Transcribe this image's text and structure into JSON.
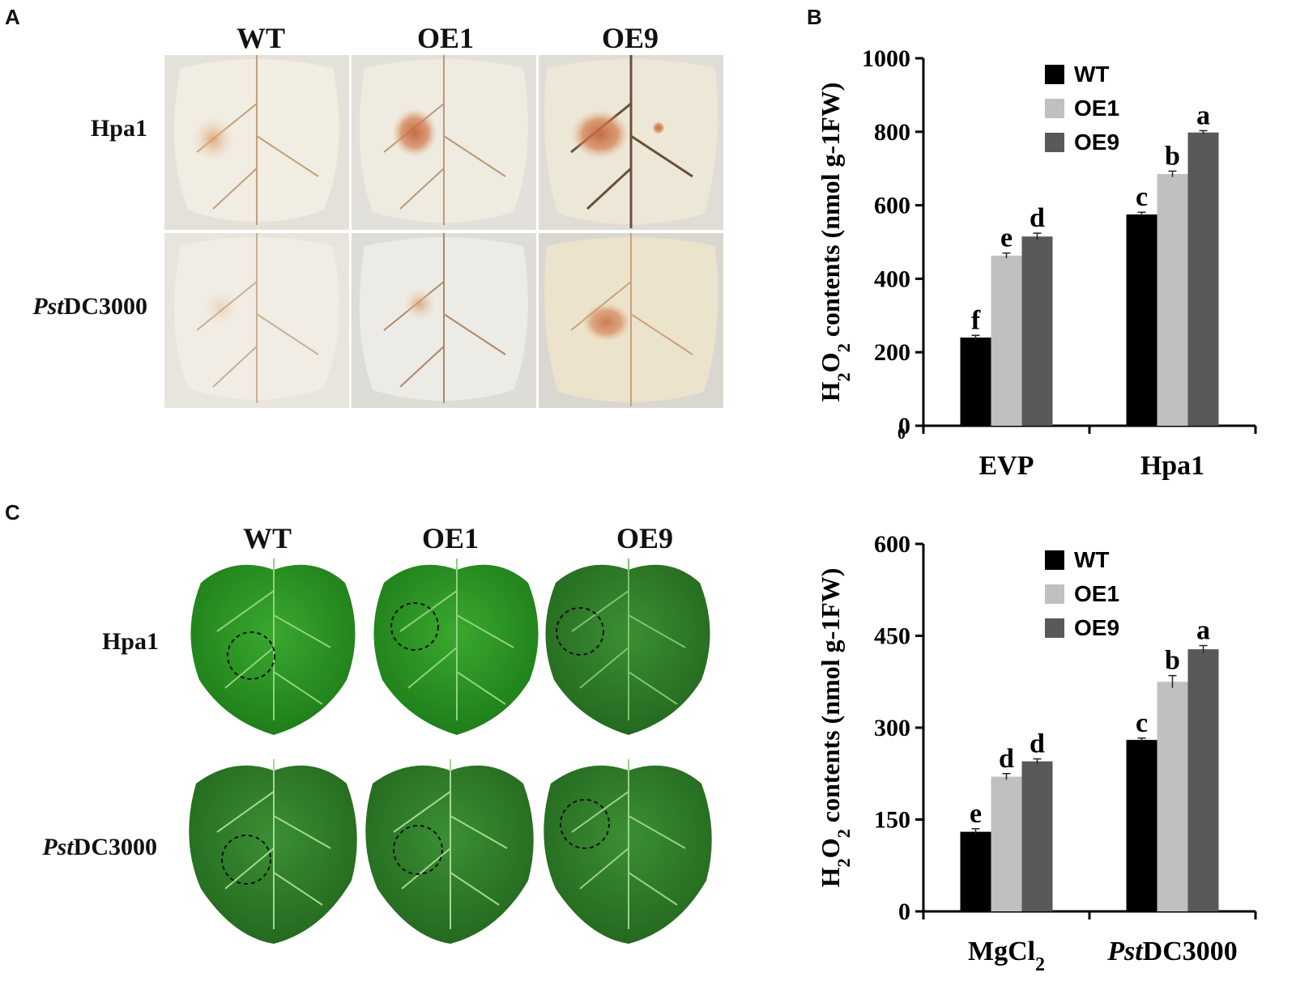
{
  "panels": {
    "a": {
      "letter": "A",
      "columns": [
        "WT",
        "OE1",
        "OE9"
      ],
      "rows": [
        "Hpa1",
        "DC3000"
      ],
      "row_italic_prefix": [
        "",
        "Pst"
      ]
    },
    "b": {
      "letter": "B"
    },
    "c": {
      "letter": "C",
      "columns": [
        "WT",
        "OE1",
        "OE9"
      ],
      "rows": [
        "Hpa1",
        "DC3000"
      ],
      "row_italic_prefix": [
        "",
        "Pst"
      ]
    }
  },
  "colors": {
    "WT": "#000000",
    "OE1": "#c0c0c0",
    "OE9": "#595959"
  },
  "chart_data": [
    {
      "type": "bar",
      "ylabel": "H2O2 contents (nmol g-1FW)",
      "ylim": [
        0,
        1000
      ],
      "yticks": [
        "0",
        "200",
        "400",
        "600",
        "800",
        "1000"
      ],
      "extra_tick_label": "0",
      "categories": [
        "EVP",
        "Hpa1"
      ],
      "category_italic_prefix": [
        "",
        ""
      ],
      "series": [
        {
          "name": "WT",
          "values": [
            240,
            575
          ],
          "errors": [
            6,
            6
          ],
          "letters": [
            "f",
            "c"
          ]
        },
        {
          "name": "OE1",
          "values": [
            463,
            685
          ],
          "errors": [
            7,
            8
          ],
          "letters": [
            "e",
            "b"
          ]
        },
        {
          "name": "OE9",
          "values": [
            515,
            798
          ],
          "errors": [
            9,
            5
          ],
          "letters": [
            "d",
            "a"
          ]
        }
      ],
      "legend": "top-center"
    },
    {
      "type": "bar",
      "ylabel": "H2O2 contents (nmol g-1FW)",
      "ylim": [
        0,
        600
      ],
      "yticks": [
        "0",
        "150",
        "300",
        "450",
        "600"
      ],
      "categories": [
        "MgCl2",
        "DC3000"
      ],
      "category_italic_prefix": [
        "",
        "Pst"
      ],
      "series": [
        {
          "name": "WT",
          "values": [
            130,
            280
          ],
          "errors": [
            5,
            3
          ],
          "letters": [
            "e",
            "c"
          ]
        },
        {
          "name": "OE1",
          "values": [
            220,
            375
          ],
          "errors": [
            5,
            10
          ],
          "letters": [
            "d",
            "b"
          ]
        },
        {
          "name": "OE9",
          "values": [
            245,
            428
          ],
          "errors": [
            4,
            6
          ],
          "letters": [
            "d",
            "a"
          ]
        }
      ],
      "legend": "top-center"
    }
  ]
}
